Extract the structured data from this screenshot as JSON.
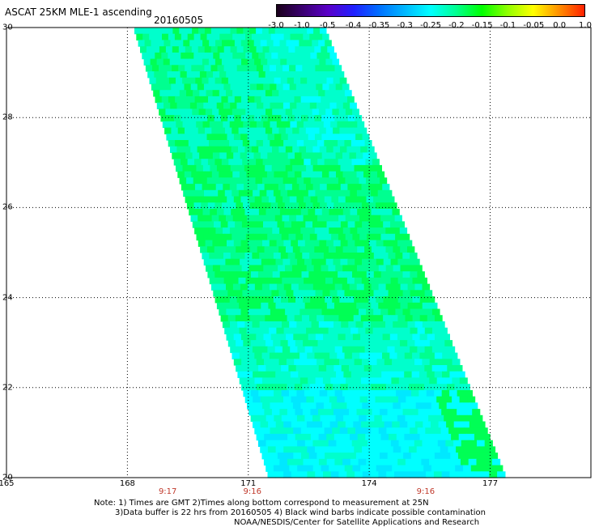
{
  "title": "ASCAT 25KM MLE-1 ascending",
  "date": "20160505",
  "colorbar": {
    "labels": [
      "-3.0",
      "-1.0",
      "-0.5",
      "-0.4",
      "-0.35",
      "-0.3",
      "-0.25",
      "-0.2",
      "-0.15",
      "-0.1",
      "-0.05",
      "0.0",
      "1.0"
    ],
    "colors": [
      "#1a001a",
      "#3a0070",
      "#5a00c8",
      "#2020ff",
      "#0070ff",
      "#00b8ff",
      "#00ffff",
      "#00ff90",
      "#00ff00",
      "#90ff00",
      "#ffff00",
      "#ff9000",
      "#ff2000"
    ]
  },
  "axes": {
    "lon_ticks": [
      "165",
      "168",
      "171",
      "174",
      "177"
    ],
    "lat_ticks": [
      "30",
      "28",
      "26",
      "24",
      "22",
      "20"
    ],
    "lon_range": [
      165,
      179.5
    ],
    "lat_range": [
      20,
      30
    ]
  },
  "swath_colors": {
    "cyan": "#00ffff",
    "green": "#00ff55",
    "lightgreen": "#00ff90",
    "teal": "#00ffcc",
    "blue": "#00e8ff"
  },
  "times": [
    {
      "label": "9:17",
      "lon": 169.0
    },
    {
      "label": "9:16",
      "lon": 171.1
    },
    {
      "label": "9:16",
      "lon": 175.4
    }
  ],
  "notes": [
    "Note: 1) Times are GMT 2)Times along bottom correspond to measurement at 25N",
    "3)Data buffer is 22 hrs from 20160505 4) Black wind barbs indicate possible contamination",
    "NOAA/NESDIS/Center for Satellite Applications and Research"
  ]
}
